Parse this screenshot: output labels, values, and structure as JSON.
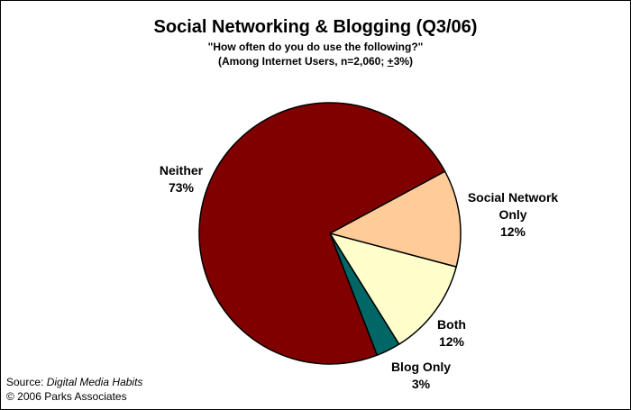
{
  "header": {
    "title": "Social Networking & Blogging (Q3/06)",
    "subtitle": "\"How often do you do use the following?\"",
    "subtitle2_prefix": "(Among Internet Users, n=2,060; ",
    "subtitle2_pm": "+",
    "subtitle2_suffix": "3%)"
  },
  "footer": {
    "source_label": "Source: ",
    "source_title": "Digital Media Habits",
    "copyright": "© 2006 Parks Associates"
  },
  "chart_data": {
    "type": "pie",
    "title": "Social Networking & Blogging (Q3/06)",
    "slices": [
      {
        "name": "Social Network Only",
        "value": 12,
        "display": "12%",
        "color": "#FFCC99",
        "label_lines": [
          "Social Network",
          "Only",
          "12%"
        ]
      },
      {
        "name": "Both",
        "value": 12,
        "display": "12%",
        "color": "#FFFFCC",
        "label_lines": [
          "Both",
          "12%"
        ]
      },
      {
        "name": "Blog Only",
        "value": 3,
        "display": "3%",
        "color": "#006666",
        "label_lines": [
          "Blog Only",
          "3%"
        ]
      },
      {
        "name": "Neither",
        "value": 73,
        "display": "73%",
        "color": "#800000",
        "label_lines": [
          "Neither",
          "73%"
        ]
      }
    ]
  }
}
